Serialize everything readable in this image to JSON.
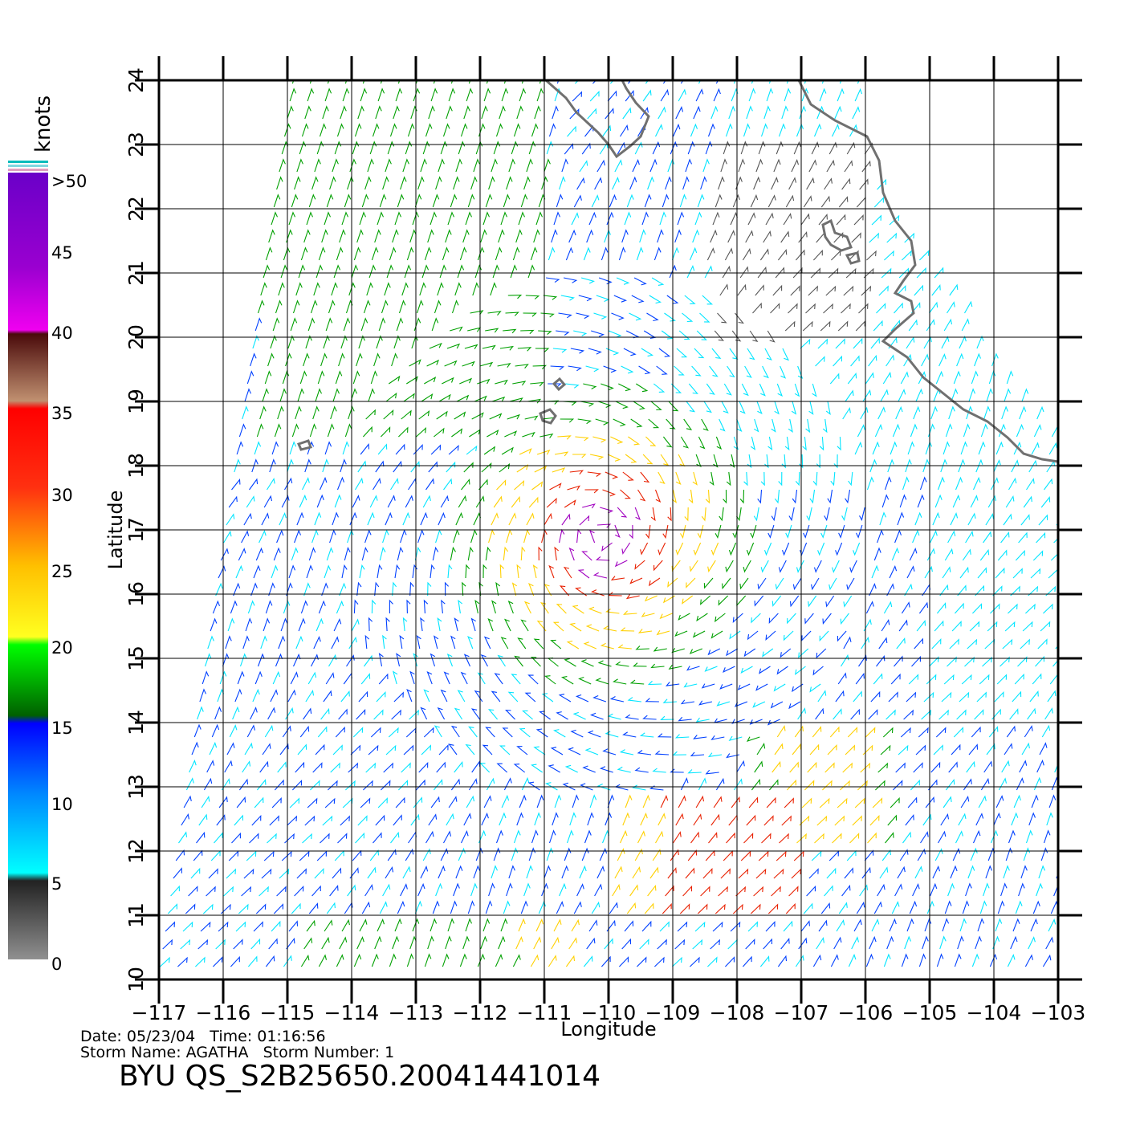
{
  "legend": {
    "title": "knots",
    "ticks": [
      ">50",
      "45",
      "40",
      "35",
      "30",
      "25",
      "20",
      "15",
      "10",
      "5",
      "0"
    ]
  },
  "axes": {
    "xlabel": "Longitude",
    "ylabel": "Latitude",
    "lon_ticks": [
      "−117",
      "−116",
      "−115",
      "−114",
      "−113",
      "−112",
      "−111",
      "−110",
      "−109",
      "−108",
      "−107",
      "−106",
      "−105",
      "−104",
      "−103"
    ],
    "lat_ticks": [
      "24",
      "23",
      "22",
      "21",
      "20",
      "19",
      "18",
      "17",
      "16",
      "15",
      "14",
      "13",
      "12",
      "11",
      "10"
    ]
  },
  "footer": {
    "date_line": "Date: 05/23/04   Time: 01:16:56",
    "storm_line": "Storm Name: AGATHA   Storm Number: 1",
    "product": "BYU QS_S2B25650.20041441014"
  },
  "colors": {
    "calm": "#555555",
    "low": "#00e5ff",
    "medium": "#0040ff",
    "fresh": "#00a000",
    "strong": "#ffd000",
    "gale": "#e82000",
    "storm": "#a000c0",
    "coast": "#707070"
  },
  "map_data": {
    "lon_range": [
      -117,
      -103
    ],
    "lat_range": [
      10,
      24
    ],
    "storm_center": {
      "lon": -110.1,
      "lat": 16.9
    },
    "speed_scale_knots": [
      0,
      5,
      10,
      15,
      20,
      25,
      30,
      35,
      40,
      45,
      50
    ]
  }
}
